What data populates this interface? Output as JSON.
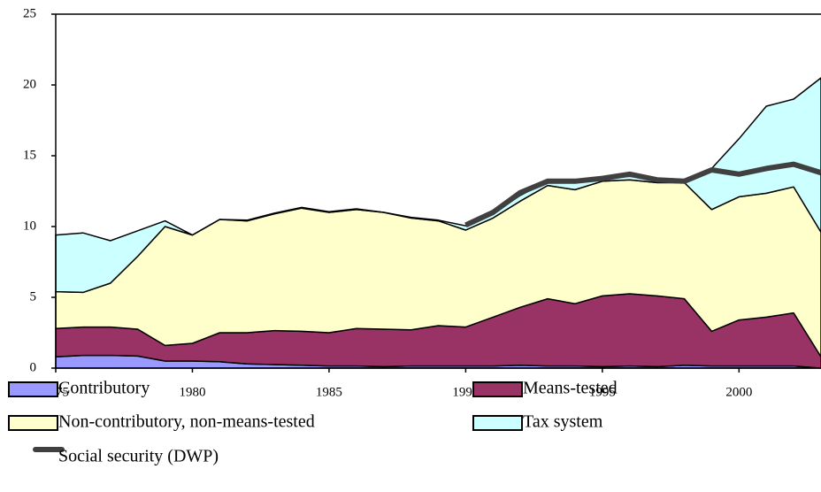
{
  "chart_data": {
    "type": "stacked-area",
    "x": [
      1975,
      1976,
      1977,
      1978,
      1979,
      1980,
      1981,
      1982,
      1983,
      1984,
      1985,
      1986,
      1987,
      1988,
      1989,
      1990,
      1991,
      1992,
      1993,
      1994,
      1995,
      1996,
      1997,
      1998,
      1999,
      2000,
      2001,
      2002,
      2003
    ],
    "xlim": [
      1975,
      2003
    ],
    "xticks": [
      1975,
      1980,
      1985,
      1990,
      1995,
      2000
    ],
    "ylim": [
      0,
      25
    ],
    "yticks": [
      0,
      5,
      10,
      15,
      20,
      25
    ],
    "series": [
      {
        "name": "Contributory",
        "color": "#9999ff",
        "values": [
          0.8,
          0.9,
          0.9,
          0.85,
          0.5,
          0.5,
          0.45,
          0.3,
          0.25,
          0.2,
          0.15,
          0.15,
          0.1,
          0.15,
          0.15,
          0.15,
          0.15,
          0.2,
          0.15,
          0.15,
          0.1,
          0.15,
          0.1,
          0.2,
          0.15,
          0.15,
          0.15,
          0.15,
          0
        ]
      },
      {
        "name": "Means-tested",
        "color": "#993366",
        "values": [
          2.0,
          2.0,
          2.0,
          1.9,
          1.1,
          1.25,
          2.05,
          2.2,
          2.4,
          2.4,
          2.35,
          2.65,
          2.65,
          2.55,
          2.85,
          2.75,
          3.45,
          4.1,
          4.75,
          4.4,
          5.0,
          5.1,
          5.0,
          4.7,
          2.45,
          3.25,
          3.45,
          3.75,
          0.8
        ]
      },
      {
        "name": "Non-contributory, non-means-tested",
        "color": "#ffffcc",
        "values": [
          2.6,
          2.45,
          3.1,
          5.15,
          8.4,
          7.65,
          8.0,
          7.9,
          8.25,
          8.7,
          8.5,
          8.4,
          8.25,
          7.9,
          7.4,
          6.85,
          7.0,
          7.5,
          8.0,
          8.05,
          8.1,
          8.05,
          8.0,
          8.2,
          8.6,
          8.7,
          8.75,
          8.9,
          8.8
        ]
      },
      {
        "name": "Tax system",
        "color": "#ccffff",
        "values": [
          4.0,
          4.2,
          3.0,
          1.8,
          0.4,
          0,
          0,
          0.05,
          0.05,
          0.05,
          0.05,
          0.05,
          0,
          0.05,
          0.05,
          0.3,
          0.3,
          0.4,
          0.3,
          0.5,
          0.15,
          0.25,
          0.2,
          0.1,
          2.9,
          4.1,
          6.15,
          6.2,
          10.9
        ]
      },
      {
        "name": "Social security (DWP)",
        "color": "#404040",
        "kind": "line",
        "values": [
          null,
          null,
          null,
          null,
          null,
          null,
          null,
          null,
          null,
          null,
          null,
          null,
          null,
          null,
          null,
          10.1,
          11.0,
          12.4,
          13.2,
          13.2,
          13.4,
          13.7,
          13.3,
          13.2,
          14.0,
          13.7,
          14.1,
          14.4,
          13.8
        ]
      }
    ]
  }
}
